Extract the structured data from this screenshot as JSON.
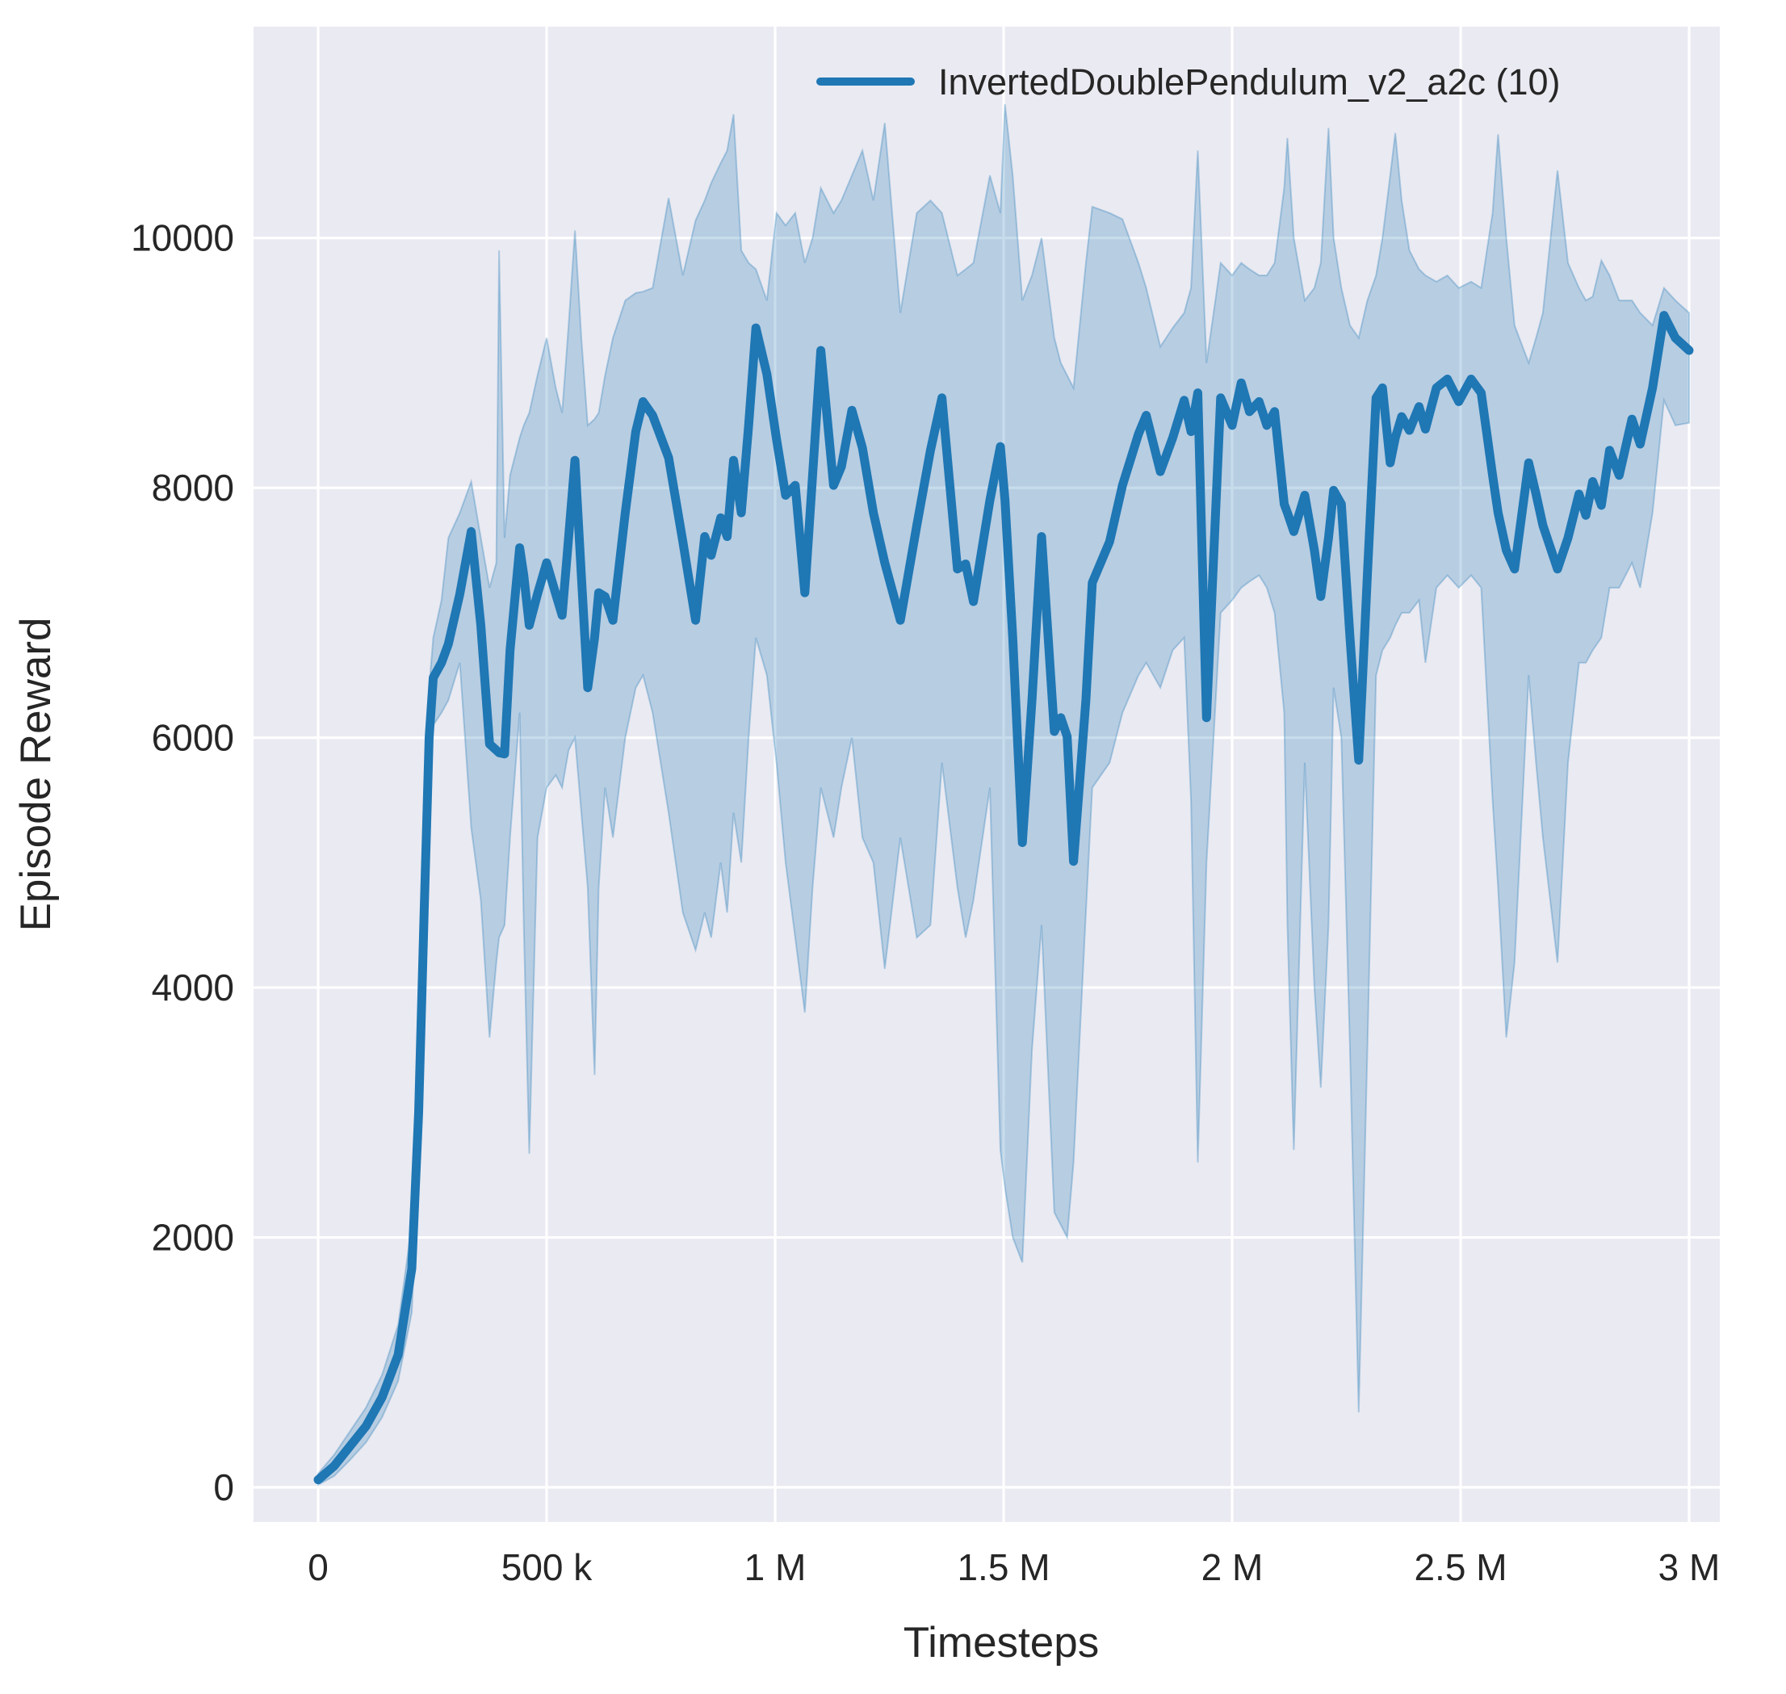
{
  "chart_data": {
    "type": "line",
    "title": "",
    "xlabel": "Timesteps",
    "ylabel": "Episode Reward",
    "legend": [
      {
        "label": "InvertedDoublePendulum_v2_a2c (10)",
        "color": "#1f77b4"
      }
    ],
    "legend_position": "top-right",
    "grid": true,
    "styles": {
      "plot_background": "#eaeaf2",
      "figure_background": "#ffffff",
      "grid_color": "#ffffff",
      "line_color": "#1f77b4",
      "band_color": "rgba(31,119,180,0.25)",
      "band_edge_color": "rgba(31,119,180,0.30)",
      "text_color": "#262626"
    },
    "x_ticks": [
      {
        "value": 0,
        "label": "0"
      },
      {
        "value": 500,
        "label": "500 k"
      },
      {
        "value": 1000,
        "label": "1 M"
      },
      {
        "value": 1500,
        "label": "1.5 M"
      },
      {
        "value": 2000,
        "label": "2 M"
      },
      {
        "value": 2500,
        "label": "2.5 M"
      },
      {
        "value": 3000,
        "label": "3 M"
      }
    ],
    "y_ticks": [
      {
        "value": 0,
        "label": "0"
      },
      {
        "value": 2000,
        "label": "2000"
      },
      {
        "value": 4000,
        "label": "4000"
      },
      {
        "value": 6000,
        "label": "6000"
      },
      {
        "value": 8000,
        "label": "8000"
      },
      {
        "value": 10000,
        "label": "10000"
      }
    ],
    "x_unit": "timesteps (value column in thousands)",
    "xlim": [
      -140,
      3070
    ],
    "ylim": [
      -310,
      11690
    ],
    "series": [
      {
        "name": "InvertedDoublePendulum_v2_a2c (10)",
        "points_format": [
          "t_thousands",
          "mean",
          "band_low",
          "band_high"
        ],
        "points": [
          [
            0,
            60,
            20,
            110
          ],
          [
            35,
            170,
            90,
            260
          ],
          [
            70,
            330,
            220,
            450
          ],
          [
            105,
            490,
            360,
            640
          ],
          [
            140,
            720,
            560,
            900
          ],
          [
            175,
            1060,
            850,
            1300
          ],
          [
            205,
            1750,
            1400,
            2100
          ],
          [
            220,
            3000,
            2500,
            3500
          ],
          [
            232,
            4600,
            4100,
            5100
          ],
          [
            243,
            6000,
            5500,
            6400
          ],
          [
            252,
            6480,
            6100,
            6800
          ],
          [
            270,
            6600,
            6200,
            7100
          ],
          [
            285,
            6750,
            6300,
            7600
          ],
          [
            310,
            7150,
            6600,
            7800
          ],
          [
            335,
            7650,
            5280,
            8050
          ],
          [
            356,
            6900,
            4700,
            7600
          ],
          [
            375,
            5950,
            3600,
            7200
          ],
          [
            390,
            5900,
            4200,
            7400
          ],
          [
            396,
            5880,
            4400,
            9900
          ],
          [
            408,
            5870,
            4500,
            7600
          ],
          [
            420,
            6700,
            5200,
            8100
          ],
          [
            441,
            7520,
            6200,
            8400
          ],
          [
            450,
            7300,
            4500,
            8500
          ],
          [
            462,
            6900,
            2670,
            8600
          ],
          [
            480,
            7150,
            5200,
            8900
          ],
          [
            500,
            7400,
            5600,
            9200
          ],
          [
            520,
            7150,
            5700,
            8800
          ],
          [
            534,
            6980,
            5600,
            8600
          ],
          [
            548,
            7600,
            5900,
            9300
          ],
          [
            562,
            8220,
            6000,
            10060
          ],
          [
            576,
            7300,
            5400,
            9200
          ],
          [
            590,
            6400,
            4800,
            8500
          ],
          [
            605,
            6800,
            3300,
            8550
          ],
          [
            614,
            7160,
            4800,
            8600
          ],
          [
            628,
            7130,
            5600,
            8900
          ],
          [
            645,
            6940,
            5200,
            9200
          ],
          [
            672,
            7800,
            6000,
            9500
          ],
          [
            695,
            8450,
            6400,
            9560
          ],
          [
            711,
            8690,
            6500,
            9570
          ],
          [
            732,
            8580,
            6200,
            9600
          ],
          [
            767,
            8240,
            5400,
            10320
          ],
          [
            798,
            7570,
            4600,
            9700
          ],
          [
            826,
            6940,
            4300,
            10140
          ],
          [
            846,
            7610,
            4600,
            10300
          ],
          [
            860,
            7460,
            4400,
            10440
          ],
          [
            881,
            7760,
            5000,
            10600
          ],
          [
            895,
            7610,
            4600,
            10700
          ],
          [
            909,
            8220,
            5400,
            10990
          ],
          [
            926,
            7800,
            5000,
            9900
          ],
          [
            942,
            8500,
            6000,
            9800
          ],
          [
            958,
            9280,
            6800,
            9750
          ],
          [
            982,
            8910,
            6500,
            9500
          ],
          [
            1003,
            8390,
            5800,
            10200
          ],
          [
            1023,
            7940,
            5000,
            10100
          ],
          [
            1044,
            8020,
            4400,
            10200
          ],
          [
            1065,
            7160,
            3800,
            9800
          ],
          [
            1082,
            8100,
            4800,
            10000
          ],
          [
            1100,
            9100,
            5600,
            10400
          ],
          [
            1128,
            8020,
            5200,
            10200
          ],
          [
            1145,
            8170,
            5600,
            10300
          ],
          [
            1168,
            8620,
            6000,
            10500
          ],
          [
            1191,
            8320,
            5200,
            10700
          ],
          [
            1215,
            7800,
            5000,
            10300
          ],
          [
            1240,
            7400,
            4150,
            10920
          ],
          [
            1274,
            6940,
            5200,
            9400
          ],
          [
            1310,
            7700,
            4400,
            10200
          ],
          [
            1340,
            8300,
            4500,
            10300
          ],
          [
            1365,
            8720,
            5800,
            10200
          ],
          [
            1399,
            7350,
            4800,
            9700
          ],
          [
            1417,
            7390,
            4400,
            9750
          ],
          [
            1434,
            7090,
            4700,
            9800
          ],
          [
            1470,
            7900,
            5600,
            10500
          ],
          [
            1493,
            8330,
            2700,
            10200
          ],
          [
            1503,
            7900,
            2400,
            11070
          ],
          [
            1520,
            6800,
            2000,
            10500
          ],
          [
            1541,
            5160,
            1800,
            9500
          ],
          [
            1562,
            6300,
            3500,
            9700
          ],
          [
            1583,
            7610,
            4500,
            10000
          ],
          [
            1611,
            6050,
            2200,
            9200
          ],
          [
            1625,
            6160,
            2100,
            9000
          ],
          [
            1639,
            6010,
            2000,
            8900
          ],
          [
            1653,
            5010,
            2600,
            8800
          ],
          [
            1680,
            6300,
            4600,
            9800
          ],
          [
            1694,
            7240,
            5600,
            10250
          ],
          [
            1732,
            7570,
            5800,
            10200
          ],
          [
            1760,
            8020,
            6200,
            10150
          ],
          [
            1795,
            8430,
            6500,
            9800
          ],
          [
            1812,
            8580,
            6600,
            9600
          ],
          [
            1843,
            8130,
            6400,
            9130
          ],
          [
            1870,
            8400,
            6700,
            9280
          ],
          [
            1895,
            8700,
            6800,
            9400
          ],
          [
            1910,
            8450,
            5500,
            9600
          ],
          [
            1925,
            8760,
            2600,
            10700
          ],
          [
            1944,
            6160,
            5000,
            9000
          ],
          [
            1975,
            8720,
            7000,
            9800
          ],
          [
            2000,
            8500,
            7100,
            9700
          ],
          [
            2020,
            8840,
            7200,
            9800
          ],
          [
            2038,
            8610,
            7250,
            9750
          ],
          [
            2059,
            8690,
            7300,
            9700
          ],
          [
            2076,
            8500,
            7200,
            9700
          ],
          [
            2093,
            8610,
            7000,
            9800
          ],
          [
            2114,
            7870,
            6200,
            10400
          ],
          [
            2121,
            7800,
            4500,
            10800
          ],
          [
            2135,
            7650,
            2700,
            10000
          ],
          [
            2159,
            7940,
            5800,
            9500
          ],
          [
            2180,
            7500,
            4000,
            9600
          ],
          [
            2194,
            7130,
            3200,
            9800
          ],
          [
            2211,
            7600,
            4500,
            10880
          ],
          [
            2222,
            7980,
            6400,
            10000
          ],
          [
            2239,
            7870,
            6000,
            9600
          ],
          [
            2258,
            6800,
            3500,
            9300
          ],
          [
            2277,
            5820,
            600,
            9200
          ],
          [
            2296,
            7300,
            3500,
            9500
          ],
          [
            2315,
            8720,
            6500,
            9700
          ],
          [
            2329,
            8800,
            6700,
            10000
          ],
          [
            2346,
            8200,
            6800,
            10500
          ],
          [
            2357,
            8400,
            6900,
            10840
          ],
          [
            2371,
            8570,
            7000,
            10300
          ],
          [
            2388,
            8460,
            7000,
            9900
          ],
          [
            2409,
            8650,
            7100,
            9750
          ],
          [
            2423,
            8470,
            6600,
            9700
          ],
          [
            2447,
            8800,
            7200,
            9650
          ],
          [
            2471,
            8870,
            7300,
            9700
          ],
          [
            2496,
            8690,
            7200,
            9600
          ],
          [
            2523,
            8870,
            7300,
            9650
          ],
          [
            2545,
            8760,
            7200,
            9600
          ],
          [
            2570,
            8100,
            5500,
            10200
          ],
          [
            2582,
            7800,
            4800,
            10830
          ],
          [
            2600,
            7500,
            3600,
            10000
          ],
          [
            2618,
            7350,
            4200,
            9300
          ],
          [
            2649,
            8200,
            6500,
            9000
          ],
          [
            2665,
            7950,
            5800,
            9200
          ],
          [
            2680,
            7700,
            5200,
            9400
          ],
          [
            2712,
            7350,
            4200,
            10540
          ],
          [
            2735,
            7600,
            5800,
            9800
          ],
          [
            2759,
            7950,
            6600,
            9600
          ],
          [
            2774,
            7780,
            6600,
            9500
          ],
          [
            2789,
            8050,
            6700,
            9530
          ],
          [
            2808,
            7860,
            6800,
            9820
          ],
          [
            2826,
            8300,
            7200,
            9700
          ],
          [
            2847,
            8100,
            7200,
            9500
          ],
          [
            2875,
            8550,
            7400,
            9500
          ],
          [
            2893,
            8350,
            7200,
            9400
          ],
          [
            2920,
            8800,
            7800,
            9300
          ],
          [
            2945,
            9380,
            8700,
            9600
          ],
          [
            2970,
            9200,
            8500,
            9500
          ],
          [
            3000,
            9100,
            8520,
            9400
          ]
        ]
      }
    ]
  }
}
